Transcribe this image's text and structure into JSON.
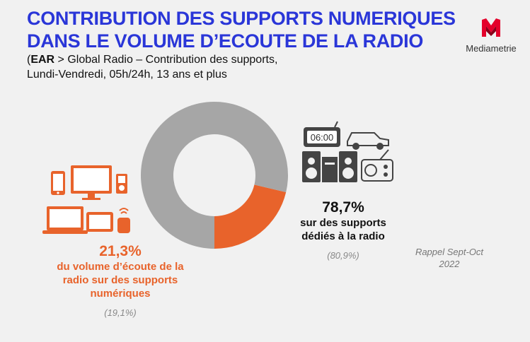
{
  "title": {
    "line1": "CONTRIBUTION DES SUPPORTS NUMERIQUES",
    "line2": "DANS LE VOLUME D’ECOUTE DE LA RADIO"
  },
  "subtitle": {
    "open": "(",
    "bold": "EAR",
    "rest": " > Global Radio – Contribution des supports,",
    "line2": "Lundi-Vendredi, 05h/24h, 13 ans et plus"
  },
  "logo": {
    "text": "Mediametrie",
    "icon": "mediametrie-logo-icon"
  },
  "clock_display": "06:00",
  "left_label": {
    "value": "21,3%",
    "desc1": "du volume d’écoute de la",
    "desc2": "radio sur des supports",
    "desc3": "numériques",
    "previous": "(19,1%)"
  },
  "right_label": {
    "value": "78,7%",
    "desc1": "sur des supports",
    "desc2": "dédiés à la radio",
    "previous": "(80,9%)"
  },
  "rappel": {
    "line1": "Rappel Sept-Oct",
    "line2": "2022"
  },
  "colors": {
    "digital": "#e8632b",
    "radio": "#a6a6a6",
    "title": "#2a36d8"
  },
  "chart_data": {
    "type": "pie",
    "subtype": "donut",
    "slices": [
      {
        "label": "du volume d’écoute de la radio sur des supports numériques",
        "value": 21.3,
        "previous": 19.1,
        "color": "#e8632b"
      },
      {
        "label": "sur des supports dédiés à la radio",
        "value": 78.7,
        "previous": 80.9,
        "color": "#a6a6a6"
      }
    ]
  }
}
